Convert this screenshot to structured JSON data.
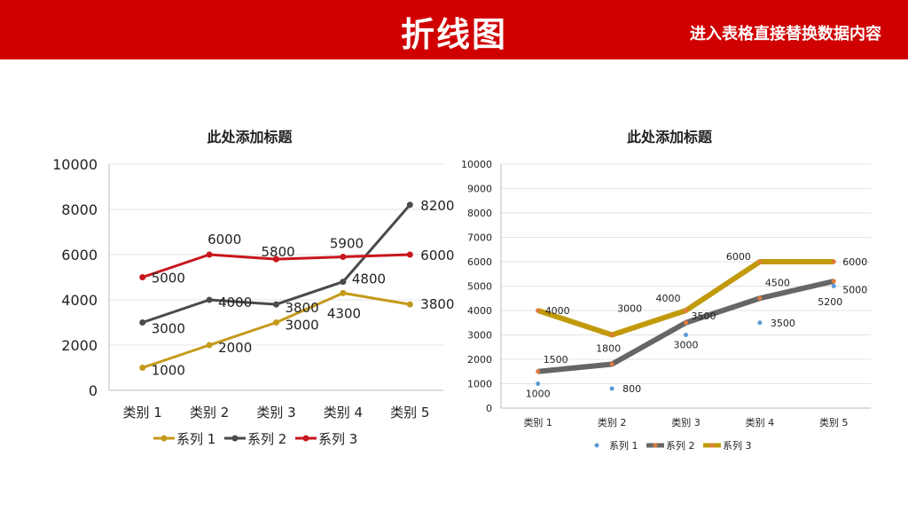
{
  "header": {
    "title": "折线图",
    "subtitle": "进入表格直接替换数据内容"
  },
  "colors": {
    "header_bg": "#d00000",
    "series1": "#c49a1c",
    "series2": "#4a4a4a",
    "series3": "#c8161d",
    "r_series1": "#5b9bd5",
    "r_series2": "#666666",
    "r_series3": "#c19a0b"
  },
  "chart_data": [
    {
      "type": "line",
      "title": "此处添加标题",
      "categories": [
        "类别 1",
        "类别 2",
        "类别 3",
        "类别 4",
        "类别 5"
      ],
      "ylim": [
        0,
        10000
      ],
      "yticks": [
        0,
        2000,
        4000,
        6000,
        8000,
        10000
      ],
      "legend": "bottom",
      "series": [
        {
          "name": "系列 1",
          "values": [
            1000,
            2000,
            3000,
            4300,
            3800
          ]
        },
        {
          "name": "系列 2",
          "values": [
            3000,
            4000,
            3800,
            4800,
            8200
          ]
        },
        {
          "name": "系列 3",
          "values": [
            5000,
            6000,
            5800,
            5900,
            6000
          ]
        }
      ]
    },
    {
      "type": "line",
      "title": "此处添加标题",
      "categories": [
        "类别 1",
        "类别 2",
        "类别 3",
        "类别 4",
        "类别 5"
      ],
      "ylim": [
        0,
        10000
      ],
      "yticks": [
        0,
        1000,
        2000,
        3000,
        4000,
        5000,
        6000,
        7000,
        8000,
        9000,
        10000
      ],
      "legend": "bottom",
      "series": [
        {
          "name": "系列 1",
          "values": [
            1000,
            800,
            3000,
            3500,
            5000
          ]
        },
        {
          "name": "系列 2",
          "values": [
            1500,
            1800,
            3500,
            4500,
            5200
          ]
        },
        {
          "name": "系列 3",
          "values": [
            4000,
            3000,
            4000,
            6000,
            6000
          ]
        }
      ]
    }
  ]
}
